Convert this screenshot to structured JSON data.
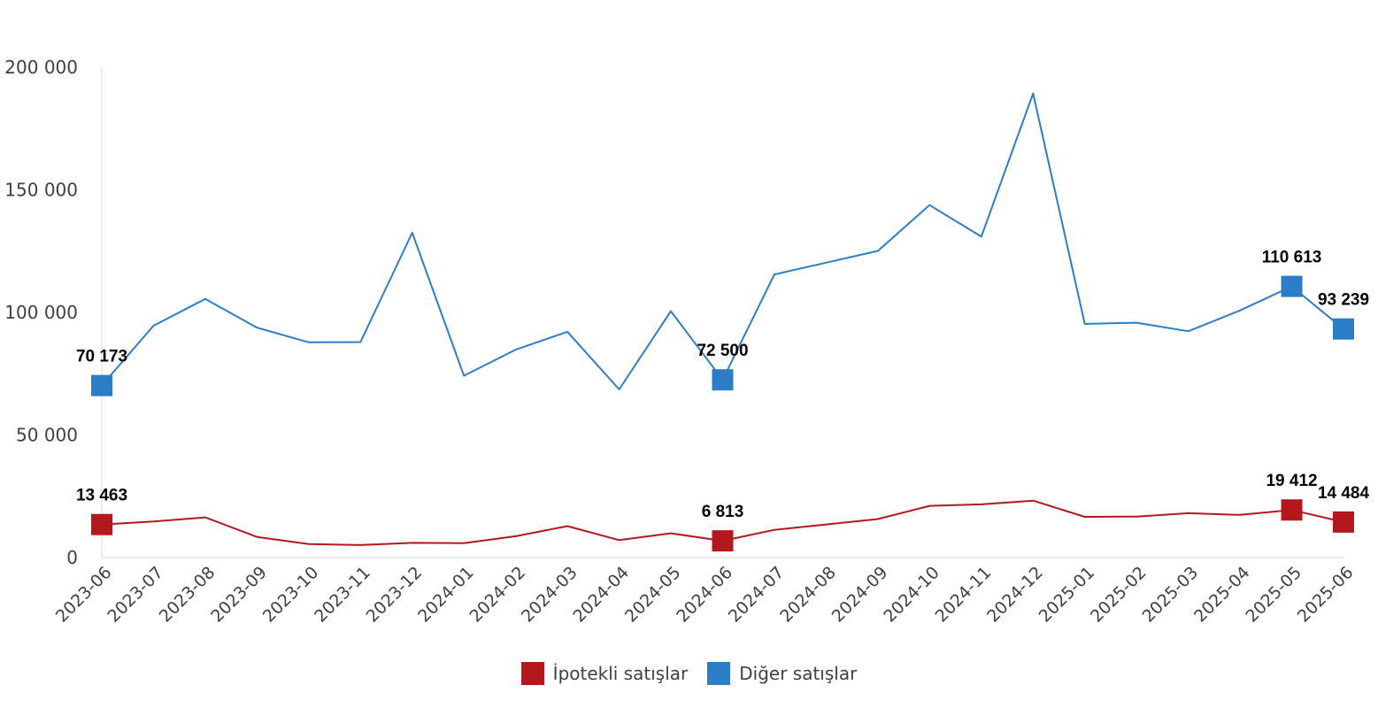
{
  "chart_data": {
    "type": "line",
    "categories": [
      "2023-06",
      "2023-07",
      "2023-08",
      "2023-09",
      "2023-10",
      "2023-11",
      "2023-12",
      "2024-01",
      "2024-02",
      "2024-03",
      "2024-04",
      "2024-05",
      "2024-06",
      "2024-07",
      "2024-08",
      "2024-09",
      "2024-10",
      "2024-11",
      "2024-12",
      "2025-01",
      "2025-02",
      "2025-03",
      "2025-04",
      "2025-05",
      "2025-06"
    ],
    "series": [
      {
        "name": "İpotekli satışlar",
        "color": "#b3181d",
        "values": [
          13463,
          14700,
          16400,
          8400,
          5500,
          5100,
          6000,
          5900,
          8700,
          12800,
          7100,
          9900,
          6813,
          11300,
          13500,
          15700,
          21100,
          21700,
          23200,
          16600,
          16700,
          18100,
          17400,
          19412,
          14484
        ]
      },
      {
        "name": "Diğer satışlar",
        "color": "#2b7ec6",
        "values": [
          70173,
          94600,
          105500,
          93800,
          87800,
          87900,
          132500,
          74200,
          84800,
          92100,
          68600,
          100500,
          72500,
          115500,
          120300,
          125100,
          143800,
          130900,
          189300,
          95300,
          95800,
          92300,
          100800,
          110613,
          93239
        ]
      }
    ],
    "data_labels": [
      {
        "series": 0,
        "index": 0,
        "text": "13 463"
      },
      {
        "series": 0,
        "index": 12,
        "text": "6 813"
      },
      {
        "series": 0,
        "index": 23,
        "text": "19 412"
      },
      {
        "series": 0,
        "index": 24,
        "text": "14 484"
      },
      {
        "series": 1,
        "index": 0,
        "text": "70 173"
      },
      {
        "series": 1,
        "index": 12,
        "text": "72 500"
      },
      {
        "series": 1,
        "index": 23,
        "text": "110 613"
      },
      {
        "series": 1,
        "index": 24,
        "text": "93 239"
      }
    ],
    "yticks": [
      0,
      50000,
      100000,
      150000,
      200000
    ],
    "ytick_labels": [
      "0",
      "50 000",
      "100 000",
      "150 000",
      "200 000"
    ],
    "ylim": [
      0,
      200000
    ],
    "grid": false,
    "legend_position": "bottom-center"
  }
}
